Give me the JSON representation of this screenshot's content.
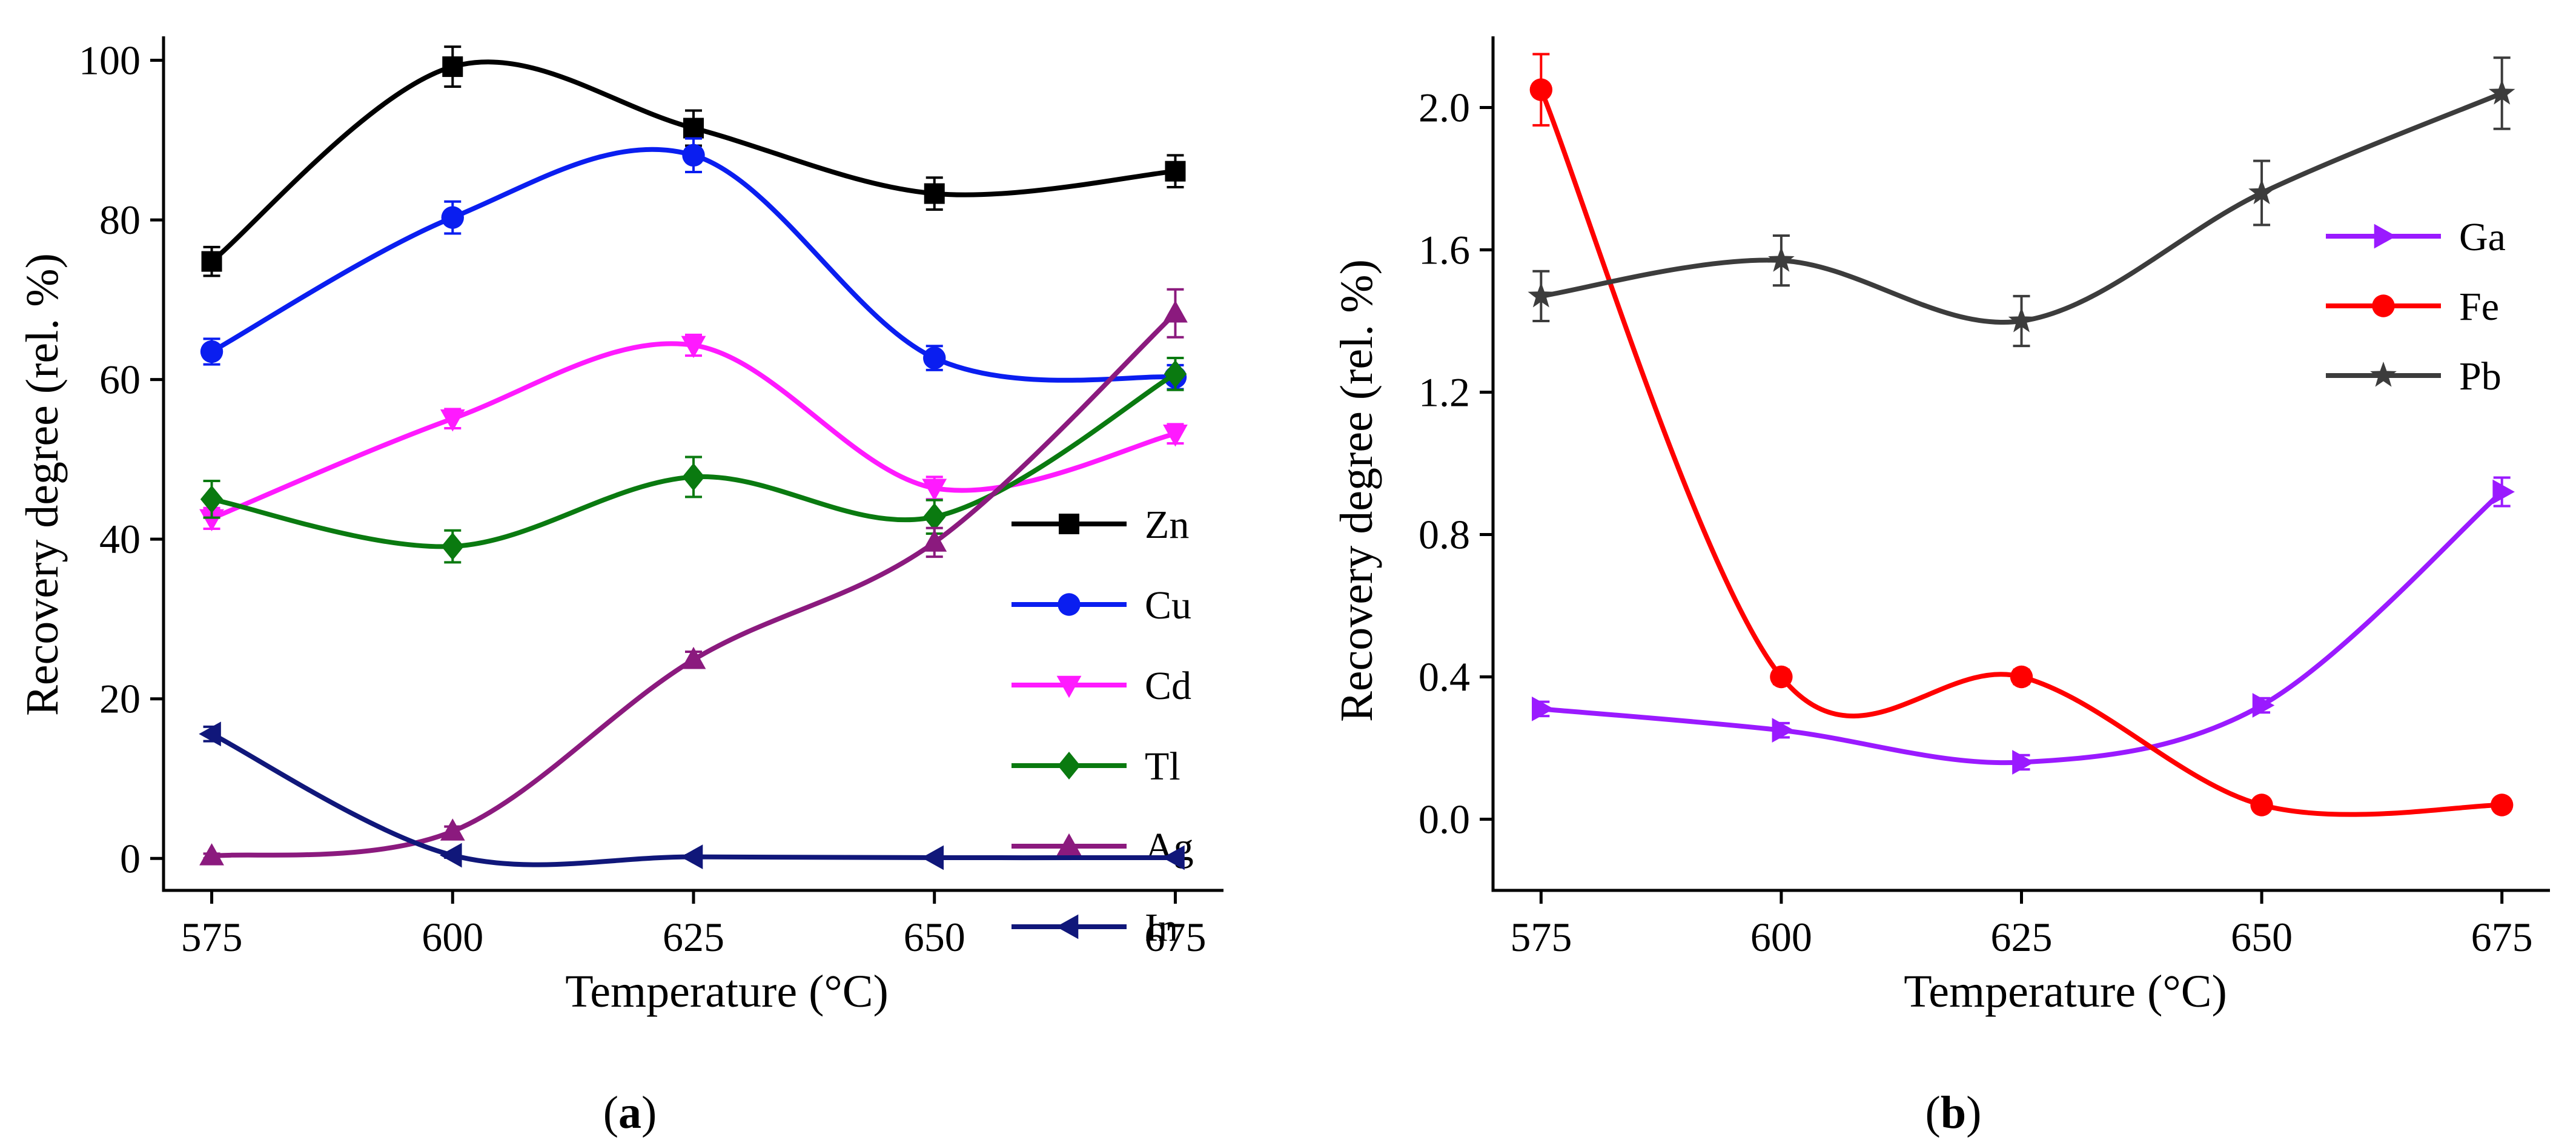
{
  "chart_data": [
    {
      "type": "line",
      "panel_label": "a",
      "xlabel": "Temperature (°C)",
      "ylabel": "Recovery degree (rel. %)",
      "x": [
        575,
        600,
        625,
        650,
        675
      ],
      "xlim": [
        570,
        680
      ],
      "ylim": [
        -4,
        103
      ],
      "xticks": [
        575,
        600,
        625,
        650,
        675
      ],
      "yticks": [
        0,
        20,
        40,
        60,
        80,
        100
      ],
      "legend_position": "right",
      "series": [
        {
          "name": "Zn",
          "color": "#000000",
          "marker": "square",
          "values": [
            74.8,
            99.2,
            91.5,
            83.3,
            86.1
          ],
          "errors": [
            1.8,
            2.5,
            2.2,
            2.0,
            2.0
          ]
        },
        {
          "name": "Cu",
          "color": "#0a1ef0",
          "marker": "circle",
          "values": [
            63.5,
            80.3,
            88.1,
            62.7,
            60.3
          ],
          "errors": [
            1.6,
            2.0,
            2.1,
            1.5,
            1.5
          ]
        },
        {
          "name": "Cd",
          "color": "#ff1aff",
          "marker": "triangle-down",
          "values": [
            42.6,
            55.1,
            64.3,
            46.4,
            53.2
          ],
          "errors": [
            1.3,
            1.2,
            1.3,
            1.4,
            1.2
          ]
        },
        {
          "name": "Tl",
          "color": "#0a7a10",
          "marker": "diamond",
          "values": [
            45.0,
            39.1,
            47.8,
            42.8,
            60.7
          ],
          "errors": [
            2.3,
            2.0,
            2.5,
            2.1,
            2.0
          ]
        },
        {
          "name": "Ag",
          "color": "#8b1a7e",
          "marker": "triangle-up",
          "values": [
            0.3,
            3.4,
            24.9,
            39.6,
            68.3
          ],
          "errors": [
            0.3,
            0.6,
            1.0,
            1.8,
            3.0
          ]
        },
        {
          "name": "In",
          "color": "#10177a",
          "marker": "triangle-left",
          "values": [
            15.6,
            0.4,
            0.2,
            0.1,
            0.1
          ],
          "errors": [
            0.9,
            0.3,
            0.2,
            0.1,
            0.1
          ]
        }
      ]
    },
    {
      "type": "line",
      "panel_label": "b",
      "xlabel": "Temperature (°C)",
      "ylabel": "Recovery degree (rel. %)",
      "x": [
        575,
        600,
        625,
        650,
        675
      ],
      "xlim": [
        570,
        680
      ],
      "ylim": [
        -0.2,
        2.2
      ],
      "xticks": [
        575,
        600,
        625,
        650,
        675
      ],
      "yticks": [
        "0.0",
        "0.4",
        "0.8",
        "1.2",
        "1.6",
        "2.0"
      ],
      "legend_position": "right",
      "series": [
        {
          "name": "Ga",
          "color": "#9a1aff",
          "marker": "triangle-right",
          "values": [
            0.31,
            0.25,
            0.16,
            0.32,
            0.92
          ],
          "errors": [
            0.02,
            0.02,
            0.02,
            0.02,
            0.04
          ]
        },
        {
          "name": "Fe",
          "color": "#ff0000",
          "marker": "circle",
          "values": [
            2.05,
            0.4,
            0.4,
            0.04,
            0.04
          ],
          "errors": [
            0.1,
            0.02,
            0.02,
            0.01,
            0.01
          ]
        },
        {
          "name": "Pb",
          "color": "#3c3c3c",
          "marker": "star",
          "values": [
            1.47,
            1.57,
            1.4,
            1.76,
            2.04
          ],
          "errors": [
            0.07,
            0.07,
            0.07,
            0.09,
            0.1
          ]
        }
      ]
    }
  ]
}
